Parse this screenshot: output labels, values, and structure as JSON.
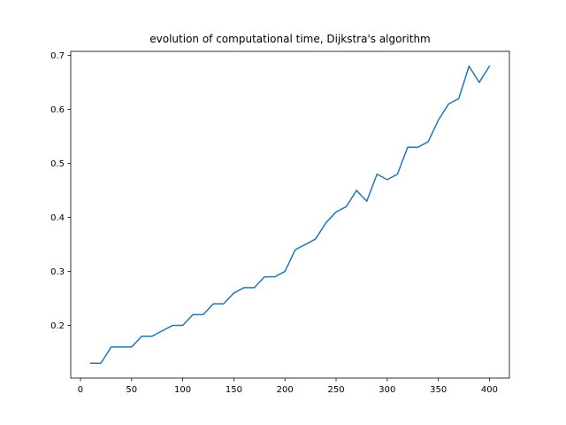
{
  "chart_data": {
    "type": "line",
    "title": "evolution of computational time, Dijkstra's algorithm",
    "xlabel": "",
    "ylabel": "",
    "xlim": [
      -9.5,
      419.5
    ],
    "ylim": [
      0.1025,
      0.7075
    ],
    "xticks": [
      0,
      50,
      100,
      150,
      200,
      250,
      300,
      350,
      400
    ],
    "yticks": [
      0.2,
      0.3,
      0.4,
      0.5,
      0.6,
      0.7
    ],
    "xtick_labels": [
      "0",
      "50",
      "100",
      "150",
      "200",
      "250",
      "300",
      "350",
      "400"
    ],
    "ytick_labels": [
      "0.2",
      "0.3",
      "0.4",
      "0.5",
      "0.6",
      "0.7"
    ],
    "grid": false,
    "series": [
      {
        "color": "#1f77b4",
        "x": [
          10,
          20,
          30,
          40,
          50,
          60,
          70,
          80,
          90,
          100,
          110,
          120,
          130,
          140,
          150,
          160,
          170,
          180,
          190,
          200,
          210,
          220,
          230,
          240,
          250,
          260,
          270,
          280,
          290,
          300,
          310,
          320,
          330,
          340,
          350,
          360,
          370,
          380,
          390,
          400
        ],
        "y": [
          0.13,
          0.13,
          0.16,
          0.16,
          0.16,
          0.18,
          0.18,
          0.19,
          0.2,
          0.2,
          0.22,
          0.22,
          0.24,
          0.24,
          0.26,
          0.27,
          0.27,
          0.29,
          0.29,
          0.3,
          0.34,
          0.35,
          0.36,
          0.39,
          0.41,
          0.42,
          0.45,
          0.43,
          0.48,
          0.47,
          0.48,
          0.53,
          0.53,
          0.54,
          0.58,
          0.61,
          0.62,
          0.68,
          0.65,
          0.68
        ]
      }
    ]
  }
}
